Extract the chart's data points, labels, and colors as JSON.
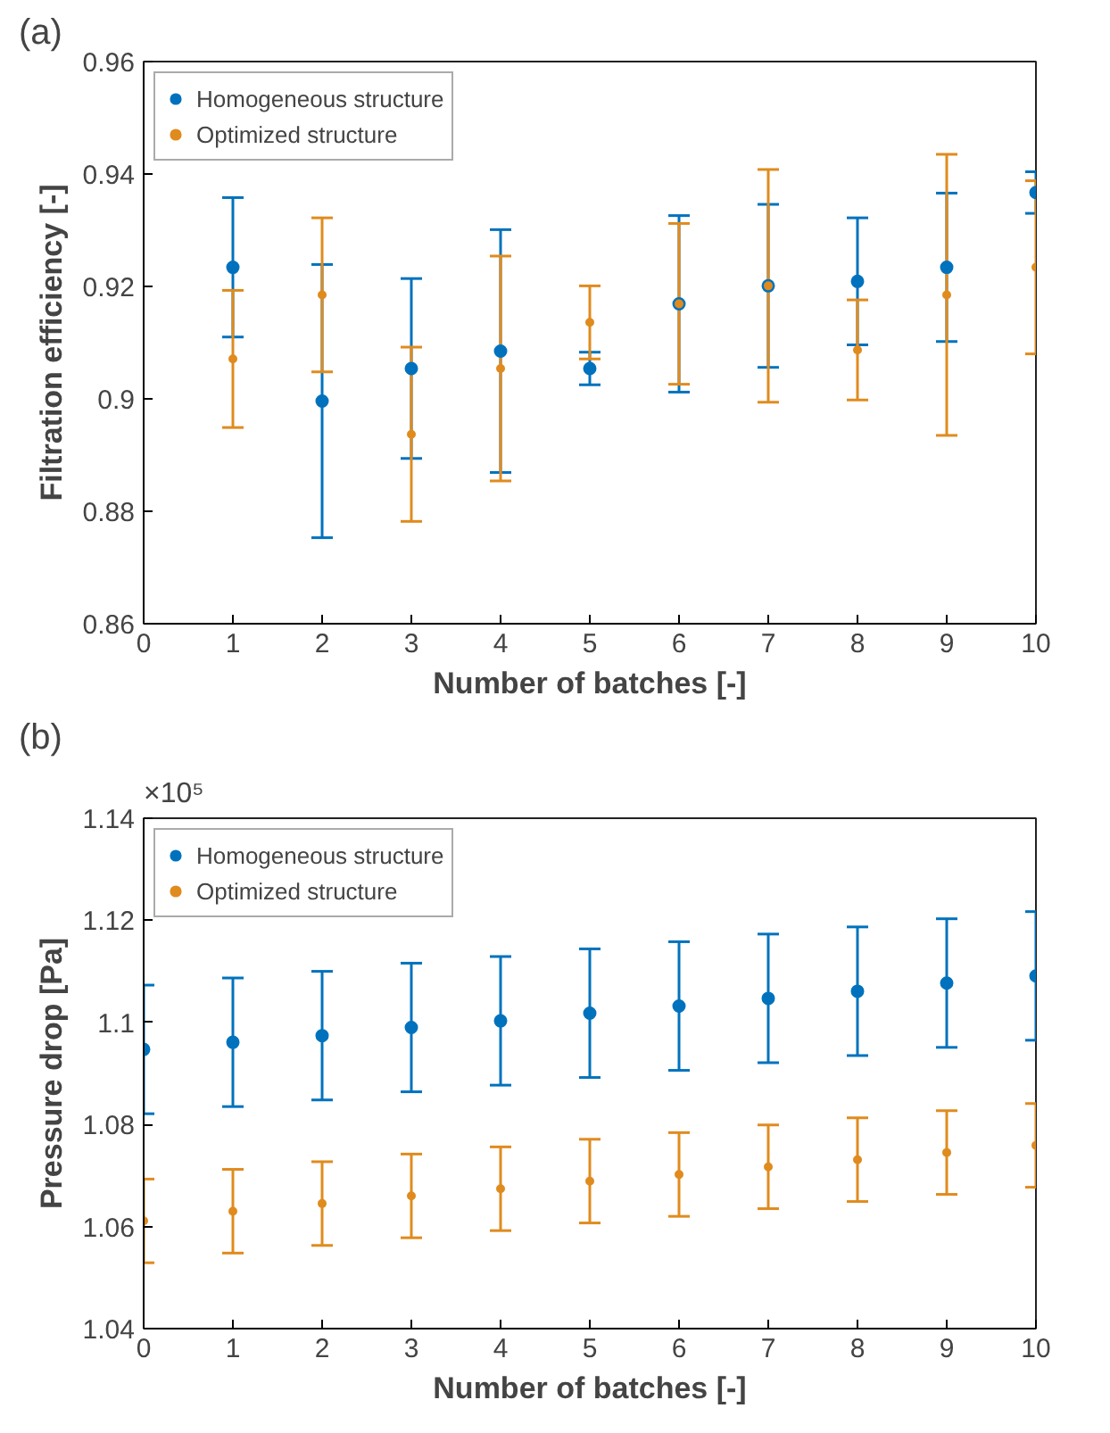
{
  "chart_data": [
    {
      "type": "scatter",
      "title": "(a)",
      "xlabel": "Number of batches [-]",
      "ylabel": "Filtration efficiency [-]",
      "x": [
        1,
        2,
        3,
        4,
        5,
        6,
        7,
        8,
        9,
        10
      ],
      "series": [
        {
          "name": "Homogeneous structure",
          "color": "#0072bd",
          "values": [
            0.9234,
            0.8996,
            0.9054,
            0.9085,
            0.9054,
            0.9169,
            0.9201,
            0.9209,
            0.9234,
            0.9367
          ],
          "errors": [
            0.0124,
            0.0243,
            0.016,
            0.0216,
            0.0029,
            0.0157,
            0.0145,
            0.0113,
            0.0132,
            0.0037
          ]
        },
        {
          "name": "Optimized structure",
          "color": "#e08b1e",
          "values": [
            0.9071,
            0.9185,
            0.8937,
            0.9054,
            0.9136,
            0.9169,
            0.9201,
            0.9087,
            0.9185,
            0.9234
          ],
          "errors": [
            0.0122,
            0.0137,
            0.0155,
            0.02,
            0.0065,
            0.0143,
            0.0207,
            0.0089,
            0.025,
            0.0154
          ]
        }
      ],
      "xlim": [
        0,
        10
      ],
      "xticks": [
        0,
        1,
        2,
        3,
        4,
        5,
        6,
        7,
        8,
        9,
        10
      ],
      "ylim": [
        0.86,
        0.96
      ],
      "yticks": [
        0.86,
        0.88,
        0.9,
        0.92,
        0.94,
        0.96
      ],
      "grid": false,
      "legend": "top left",
      "marker": "circle"
    },
    {
      "type": "scatter",
      "title": "(b)",
      "xlabel": "Number of batches [-]",
      "ylabel": "Pressure drop [Pa]",
      "annotations": [
        "×10⁵"
      ],
      "x": [
        0,
        1,
        2,
        3,
        4,
        5,
        6,
        7,
        8,
        9,
        10
      ],
      "series": [
        {
          "name": "Homogeneous structure",
          "color": "#0072bd",
          "values": [
            1.0947,
            1.0961,
            1.0974,
            1.099,
            1.1003,
            1.1018,
            1.1032,
            1.1047,
            1.1061,
            1.1077,
            1.1091
          ],
          "errors": [
            0.0126,
            0.0126,
            0.0126,
            0.0126,
            0.0126,
            0.0126,
            0.0126,
            0.0126,
            0.0126,
            0.0126,
            0.0126
          ]
        },
        {
          "name": "Optimized structure",
          "color": "#e08b1e",
          "values": [
            1.0611,
            1.063,
            1.0645,
            1.066,
            1.0674,
            1.0689,
            1.0702,
            1.0717,
            1.0731,
            1.0745,
            1.0759
          ],
          "errors": [
            0.0082,
            0.0082,
            0.0082,
            0.0082,
            0.0082,
            0.0082,
            0.0082,
            0.0082,
            0.0082,
            0.0082,
            0.0082
          ]
        }
      ],
      "xlim": [
        0,
        10
      ],
      "xticks": [
        0,
        1,
        2,
        3,
        4,
        5,
        6,
        7,
        8,
        9,
        10
      ],
      "ylim": [
        1.04,
        1.14
      ],
      "yticks": [
        1.04,
        1.06,
        1.08,
        1.1,
        1.12,
        1.14
      ],
      "grid": false,
      "legend": "top left",
      "marker": "circle"
    }
  ]
}
